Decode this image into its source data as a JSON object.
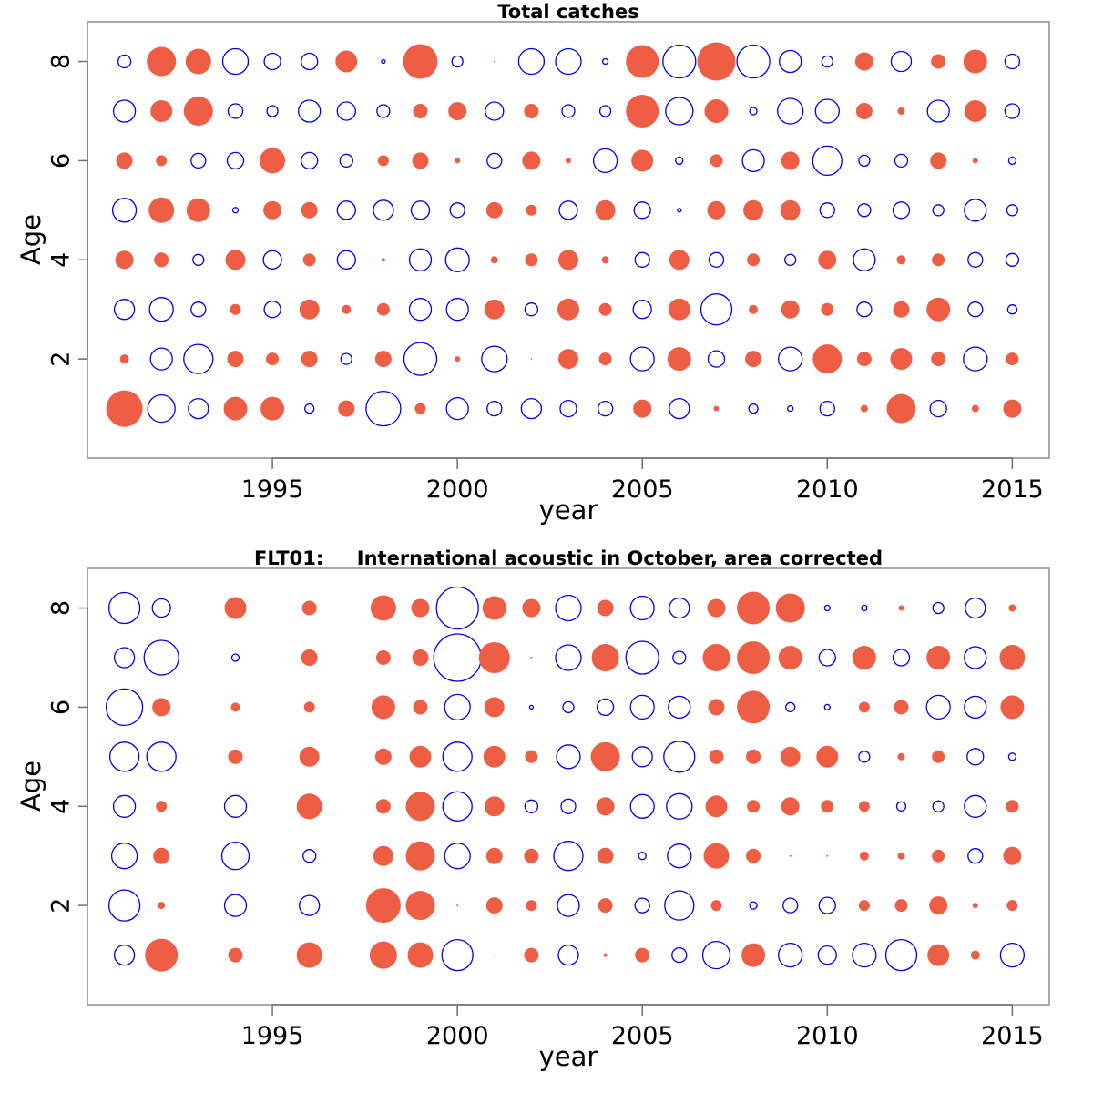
{
  "chart_data": [
    {
      "type": "scatter",
      "subtype": "bubble-residuals",
      "title": "Total catches",
      "xlabel": "year",
      "ylabel": "Age",
      "xlim": [
        1990,
        2016
      ],
      "ylim": [
        0,
        8.8
      ],
      "x_ticks": [
        1995,
        2000,
        2005,
        2010,
        2015
      ],
      "y_ticks": [
        2,
        4,
        6,
        8
      ],
      "positive_color": "#EE5E45",
      "negative_color": "#0000EE",
      "legend": "none",
      "years": [
        1991,
        1992,
        1993,
        1994,
        1995,
        1996,
        1997,
        1998,
        1999,
        2000,
        2001,
        2002,
        2003,
        2004,
        2005,
        2006,
        2007,
        2008,
        2009,
        2010,
        2011,
        2012,
        2013,
        2014,
        2015
      ],
      "residuals_by_age": {
        "8": [
          -0.7,
          1.6,
          1.4,
          -1.4,
          -0.9,
          -0.9,
          1.2,
          -0.2,
          1.9,
          -0.6,
          0.1,
          -1.4,
          -1.4,
          -0.3,
          1.8,
          -1.8,
          2.1,
          -1.8,
          -1.2,
          -0.6,
          1.0,
          -1.1,
          0.8,
          1.3,
          -0.8
        ],
        "7": [
          -1.2,
          1.2,
          1.6,
          -0.8,
          -0.6,
          -1.2,
          -1.0,
          -0.7,
          0.8,
          1.0,
          -1.0,
          0.8,
          -0.7,
          -0.6,
          1.8,
          -1.5,
          1.3,
          -0.4,
          -1.4,
          -1.3,
          0.9,
          0.4,
          -1.2,
          1.2,
          -0.8
        ],
        "6": [
          0.9,
          0.6,
          -0.8,
          -0.9,
          1.4,
          -0.9,
          -0.7,
          0.6,
          0.9,
          0.3,
          -0.8,
          1.0,
          0.3,
          -1.3,
          1.2,
          -0.4,
          0.7,
          -1.2,
          1.0,
          -1.6,
          -0.6,
          -0.7,
          0.9,
          0.3,
          -0.4
        ],
        "5": [
          -1.3,
          1.4,
          1.3,
          -0.3,
          1.0,
          0.9,
          -1.0,
          -1.1,
          -1.0,
          -0.8,
          0.9,
          0.6,
          -1.0,
          1.1,
          -0.9,
          -0.2,
          1.0,
          1.1,
          1.1,
          -0.8,
          -0.7,
          -0.9,
          -0.6,
          -1.2,
          -0.6
        ],
        "4": [
          1.0,
          0.8,
          -0.6,
          1.1,
          -1.0,
          0.7,
          -1.0,
          0.2,
          -1.2,
          -1.3,
          0.4,
          0.7,
          1.1,
          0.4,
          -0.8,
          1.1,
          -0.8,
          0.7,
          -0.6,
          1.0,
          -1.2,
          0.5,
          0.7,
          -0.8,
          -0.7
        ],
        "3": [
          -1.1,
          -1.3,
          -0.8,
          0.6,
          -0.9,
          1.1,
          0.5,
          0.7,
          -1.2,
          -1.2,
          1.1,
          -0.7,
          1.2,
          0.7,
          -1.0,
          1.2,
          -1.7,
          0.5,
          1.0,
          0.7,
          -0.8,
          0.9,
          1.3,
          -0.8,
          -0.5
        ],
        "2": [
          0.5,
          -1.2,
          -1.6,
          0.9,
          0.7,
          0.9,
          -0.6,
          0.9,
          -1.8,
          0.3,
          -1.4,
          0.05,
          1.1,
          0.7,
          -1.3,
          1.3,
          -0.9,
          0.9,
          -1.3,
          1.6,
          0.8,
          1.2,
          0.8,
          -1.3,
          0.7
        ],
        "1": [
          2.0,
          -1.5,
          -1.1,
          1.3,
          1.3,
          -0.5,
          0.9,
          -1.9,
          0.6,
          -1.2,
          -0.8,
          -1.1,
          -0.9,
          -0.8,
          1.0,
          -1.1,
          0.3,
          -0.5,
          -0.3,
          -0.8,
          0.4,
          1.6,
          -0.9,
          0.4,
          1.0
        ]
      }
    },
    {
      "type": "scatter",
      "subtype": "bubble-residuals",
      "title": "FLT01:     International acoustic in October, area corrected",
      "xlabel": "year",
      "ylabel": "Age",
      "xlim": [
        1990,
        2016
      ],
      "ylim": [
        0,
        8.8
      ],
      "x_ticks": [
        1995,
        2000,
        2005,
        2010,
        2015
      ],
      "y_ticks": [
        2,
        4,
        6,
        8
      ],
      "positive_color": "#EE5E45",
      "negative_color": "#0000EE",
      "legend": "none",
      "years": [
        1991,
        1992,
        1993,
        1994,
        1995,
        1996,
        1997,
        1998,
        1999,
        2000,
        2001,
        2002,
        2003,
        2004,
        2005,
        2006,
        2007,
        2008,
        2009,
        2010,
        2011,
        2012,
        2013,
        2014,
        2015
      ],
      "residuals_by_age": {
        "8": [
          -1.7,
          -1.0,
          null,
          1.2,
          null,
          0.8,
          null,
          1.4,
          1.0,
          -2.3,
          1.3,
          1.0,
          -1.4,
          0.9,
          -1.3,
          -1.1,
          1.0,
          1.8,
          1.6,
          -0.3,
          -0.3,
          0.3,
          -0.6,
          -1.1,
          0.4
        ],
        "7": [
          -1.1,
          -1.9,
          null,
          -0.4,
          null,
          0.9,
          null,
          0.8,
          0.9,
          -2.6,
          1.7,
          0.1,
          -1.4,
          1.5,
          -1.8,
          -0.7,
          1.5,
          1.8,
          1.3,
          -0.9,
          1.3,
          -0.9,
          1.3,
          -1.2,
          1.4
        ],
        "6": [
          -2.0,
          1.0,
          null,
          0.5,
          null,
          0.6,
          null,
          1.3,
          0.8,
          -1.4,
          1.1,
          -0.2,
          -0.6,
          -0.9,
          -1.3,
          -1.2,
          0.9,
          1.8,
          -0.5,
          -0.3,
          0.6,
          0.8,
          -1.3,
          -1.2,
          1.3
        ],
        "5": [
          -1.6,
          -1.6,
          null,
          0.8,
          null,
          1.1,
          null,
          0.9,
          1.2,
          -1.6,
          1.2,
          0.7,
          -1.3,
          1.6,
          -1.1,
          -1.7,
          0.8,
          0.8,
          1.1,
          1.2,
          -0.6,
          0.4,
          0.7,
          -0.9,
          -0.4
        ],
        "4": [
          -1.2,
          0.6,
          null,
          -1.2,
          null,
          1.4,
          null,
          0.8,
          1.6,
          -1.6,
          1.1,
          -0.7,
          -0.8,
          1.0,
          -1.3,
          -1.4,
          1.2,
          0.7,
          1.0,
          0.7,
          0.6,
          -0.5,
          -0.6,
          -1.2,
          0.7
        ],
        "3": [
          -1.4,
          0.9,
          null,
          -1.5,
          null,
          -0.7,
          null,
          1.1,
          1.6,
          -1.4,
          0.9,
          0.8,
          -1.6,
          0.9,
          -0.4,
          -1.3,
          1.4,
          0.8,
          0.1,
          0.1,
          0.5,
          0.4,
          0.7,
          -0.8,
          1.0
        ],
        "2": [
          -1.7,
          0.4,
          null,
          -1.2,
          null,
          -1.1,
          null,
          1.9,
          1.6,
          0.1,
          0.9,
          0.6,
          -1.2,
          0.8,
          -0.8,
          -1.6,
          0.6,
          -0.4,
          -0.8,
          -0.9,
          0.6,
          0.7,
          1.0,
          0.3,
          0.6
        ],
        "1": [
          -1.1,
          1.8,
          null,
          0.8,
          null,
          1.4,
          null,
          1.5,
          1.4,
          -1.7,
          0.1,
          0.8,
          -1.1,
          0.2,
          0.8,
          -0.8,
          -1.5,
          1.3,
          -1.3,
          -1.0,
          -1.3,
          -1.7,
          1.2,
          0.5,
          -1.3
        ]
      }
    }
  ]
}
